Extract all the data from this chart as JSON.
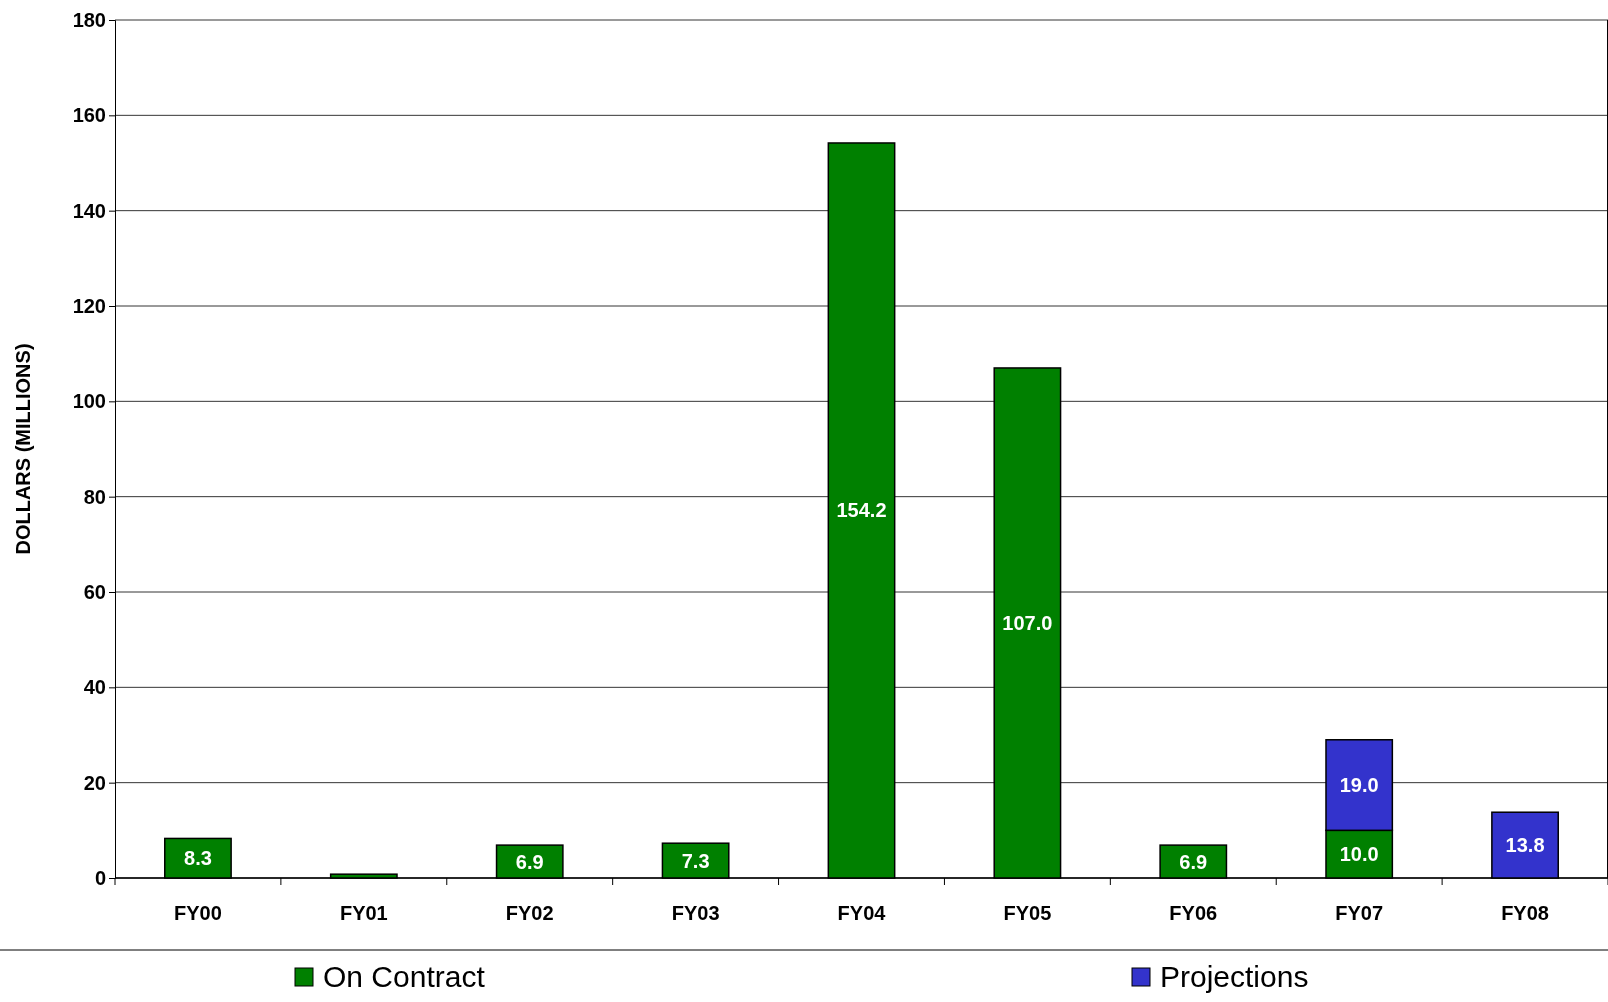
{
  "chart_data": {
    "type": "bar",
    "ylabel": "DOLLARS (MILLIONS)",
    "categories": [
      "FY00",
      "FY01",
      "FY02",
      "FY03",
      "FY04",
      "FY05",
      "FY06",
      "FY07",
      "FY08"
    ],
    "series": [
      {
        "name": "On Contract",
        "color": "#008000",
        "values": [
          8.3,
          0.8,
          6.9,
          7.3,
          154.2,
          107.0,
          6.9,
          10.0,
          null
        ],
        "value_labels": [
          "8.3",
          null,
          "6.9",
          "7.3",
          "154.2",
          "107.0",
          "6.9",
          "10.0",
          null
        ]
      },
      {
        "name": "Projections",
        "color": "#3333cc",
        "values": [
          null,
          null,
          null,
          null,
          null,
          null,
          null,
          19.0,
          13.8
        ],
        "value_labels": [
          null,
          null,
          null,
          null,
          null,
          null,
          null,
          "19.0",
          "13.8"
        ]
      }
    ],
    "stacked": true,
    "ylim": [
      0,
      180
    ],
    "yticks": [
      0,
      20,
      40,
      60,
      80,
      100,
      120,
      140,
      160,
      180
    ],
    "grid": "y",
    "legend": "bottom"
  }
}
